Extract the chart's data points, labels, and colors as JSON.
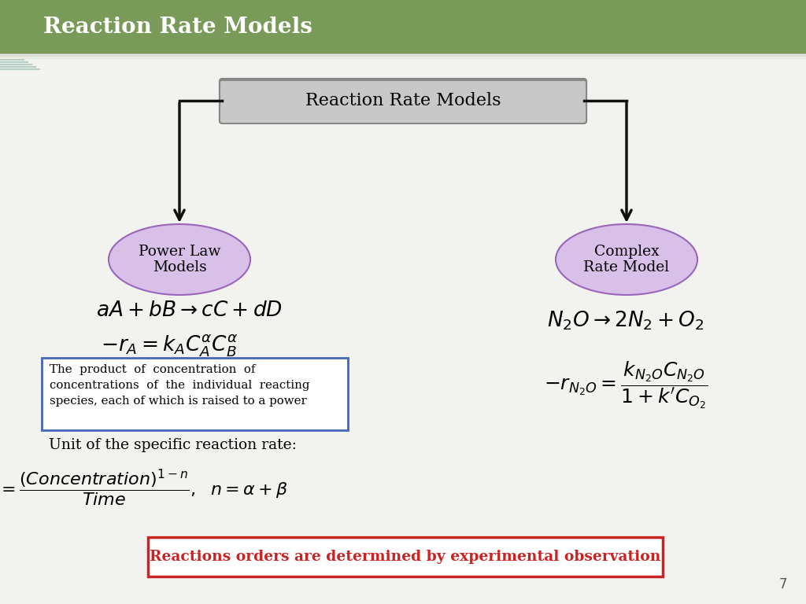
{
  "title_bar_text": "Reaction Rate Models",
  "title_bar_color": "#7a9a5a",
  "title_bar_text_color": "#ffffff",
  "slide_bg": "#f2f2ee",
  "top_box_text": "Reaction Rate Models",
  "top_box_fill": "#d0d0d0",
  "top_box_edge": "#888888",
  "oval_fill": "#d8c0e8",
  "oval_edge": "#9966bb",
  "left_oval_text": "Power Law\nModels",
  "right_oval_text": "Complex\nRate Model",
  "arrow_color": "#111111",
  "box_fill": "#ffffff",
  "box_edge": "#4466bb",
  "bottom_box_fill": "#ffffff",
  "bottom_box_edge": "#cc2222",
  "bottom_box_text_color": "#cc2222",
  "bottom_box_text": "Reactions orders are determined by experimental observation",
  "page_number": "7"
}
